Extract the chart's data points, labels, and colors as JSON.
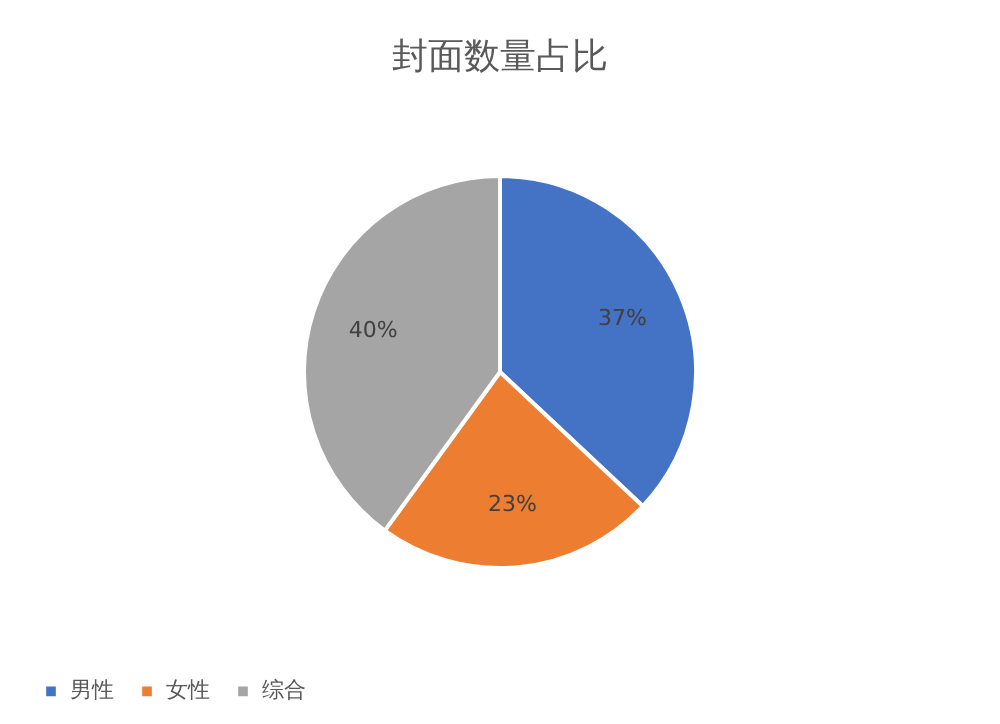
{
  "chart_data": {
    "type": "pie",
    "title": "封面数量占比",
    "categories": [
      "男性",
      "女性",
      "综合"
    ],
    "values": [
      37,
      23,
      40
    ],
    "colors": [
      "#4472c4",
      "#ed7d31",
      "#a5a5a5"
    ],
    "value_labels": [
      "37%",
      "23%",
      "40%"
    ],
    "legend": "bottom"
  }
}
